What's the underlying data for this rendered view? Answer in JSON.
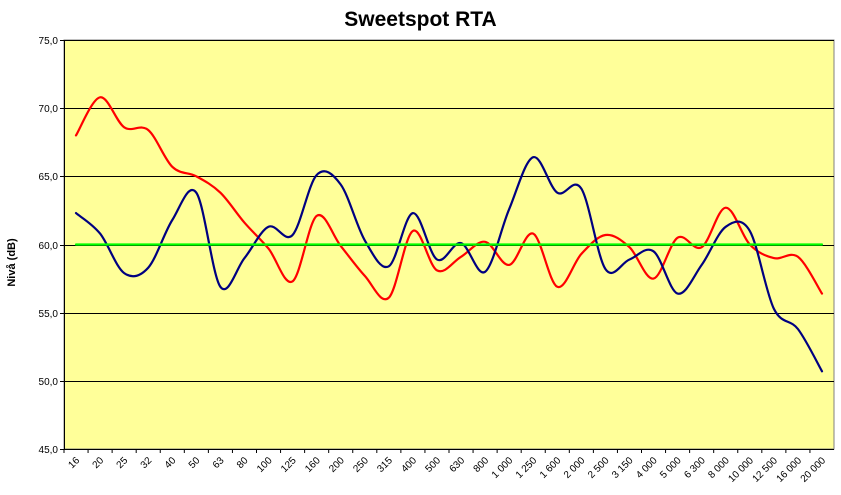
{
  "chart_data": {
    "type": "line",
    "title": "Sweetspot RTA",
    "xlabel": "",
    "ylabel": "Nivå (dB)",
    "ylim": [
      45,
      75
    ],
    "ytick_values": [
      45,
      50,
      55,
      60,
      65,
      70,
      75
    ],
    "ytick_labels": [
      "45,0",
      "50,0",
      "55,0",
      "60,0",
      "65,0",
      "70,0",
      "75,0"
    ],
    "grid": true,
    "background_color": "#FFFF99",
    "categories": [
      "16",
      "20",
      "25",
      "32",
      "40",
      "50",
      "63",
      "80",
      "100",
      "125",
      "160",
      "200",
      "250",
      "315",
      "400",
      "500",
      "630",
      "800",
      "1 000",
      "1 250",
      "1 600",
      "2 000",
      "2 500",
      "3 150",
      "4 000",
      "5 000",
      "6 300",
      "8 000",
      "10 000",
      "12 500",
      "16 000",
      "20 000"
    ],
    "series": [
      {
        "name": "red",
        "color": "#FF0000",
        "values": [
          68.0,
          70.8,
          68.6,
          68.4,
          65.7,
          65.0,
          63.8,
          61.6,
          59.7,
          57.3,
          62.1,
          59.9,
          57.7,
          56.1,
          61.0,
          58.1,
          59.1,
          60.2,
          58.5,
          60.8,
          56.9,
          59.3,
          60.7,
          59.8,
          57.5,
          60.5,
          59.8,
          62.7,
          60.0,
          59.0,
          59.1,
          56.4
        ]
      },
      {
        "name": "blue",
        "color": "#000080",
        "values": [
          62.3,
          60.8,
          57.9,
          58.3,
          61.8,
          63.8,
          56.9,
          59.0,
          61.3,
          60.7,
          65.1,
          64.4,
          60.3,
          58.4,
          62.3,
          58.9,
          60.1,
          58.0,
          62.6,
          66.4,
          63.8,
          64.1,
          58.2,
          58.9,
          59.5,
          56.4,
          58.5,
          61.3,
          61.0,
          55.3,
          53.8,
          50.7
        ]
      },
      {
        "name": "green",
        "color": "#00FF00",
        "values": [
          60,
          60,
          60,
          60,
          60,
          60,
          60,
          60,
          60,
          60,
          60,
          60,
          60,
          60,
          60,
          60,
          60,
          60,
          60,
          60,
          60,
          60,
          60,
          60,
          60,
          60,
          60,
          60,
          60,
          60,
          60,
          60
        ]
      }
    ]
  }
}
